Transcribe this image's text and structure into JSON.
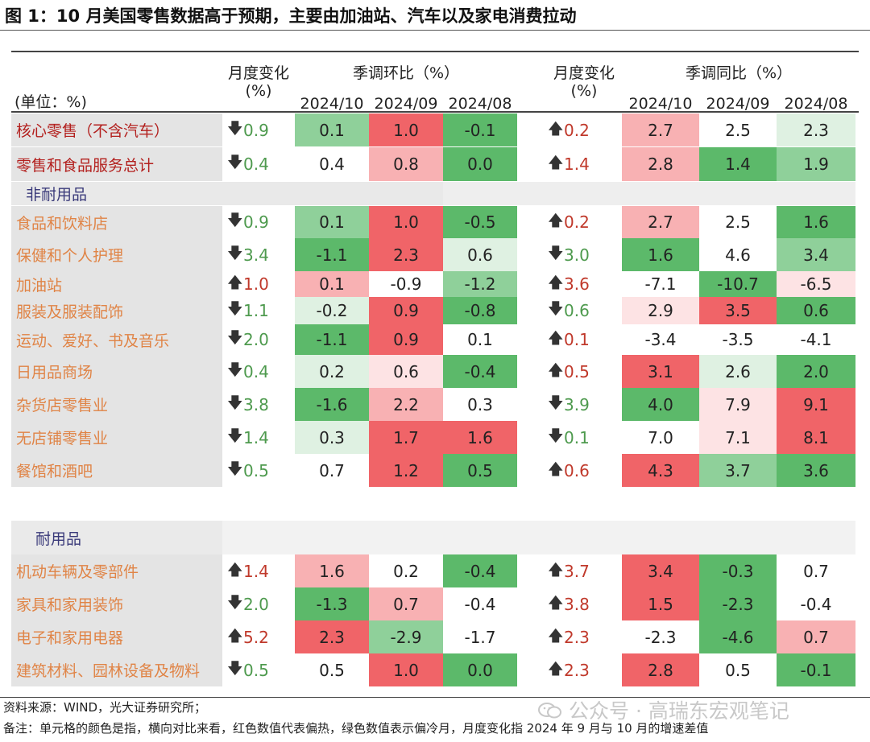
{
  "title": "图 1：10 月美国零售数据高于预期，主要由加油站、汽车以及家电消费拉动",
  "header": {
    "unit": "(单位：%)",
    "mom_change_line1": "月度变化",
    "mom_change_line2": "(%)",
    "mom_group": "季调环比（%）",
    "yoy_change_line1": "月度变化",
    "yoy_change_line2": "(%)",
    "yoy_group": "季调同比（%）",
    "months": [
      "2024/10",
      "2024/09",
      "2024/08"
    ]
  },
  "colors": {
    "red_strong": "#f06468",
    "red_medium": "#f8b1b3",
    "red_light": "#fde3e4",
    "green_strong": "#5cb96a",
    "green_medium": "#8fd09a",
    "green_light": "#dff1e2",
    "white": "#ffffff"
  },
  "rows": [
    {
      "name": "核心零售（不含汽车）",
      "type": "top",
      "mom_dir": "down",
      "mom_chg": "0.9",
      "mom": [
        "0.1",
        "1.0",
        "-0.1"
      ],
      "mom_c": [
        "gm",
        "rs",
        "gs"
      ],
      "yoy_dir": "up",
      "yoy_chg": "0.2",
      "yoy": [
        "2.7",
        "2.5",
        "2.3"
      ],
      "yoy_c": [
        "rm",
        "w",
        "gl"
      ]
    },
    {
      "name": "零售和食品服务总计",
      "type": "top",
      "mom_dir": "down",
      "mom_chg": "0.4",
      "mom": [
        "0.4",
        "0.8",
        "0.0"
      ],
      "mom_c": [
        "w",
        "rm",
        "gs"
      ],
      "yoy_dir": "up",
      "yoy_chg": "1.4",
      "yoy": [
        "2.8",
        "1.4",
        "1.9"
      ],
      "yoy_c": [
        "rm",
        "gs",
        "gm"
      ]
    },
    {
      "name": "食品和饮料店",
      "type": "sub",
      "mom_dir": "down",
      "mom_chg": "0.9",
      "mom": [
        "0.1",
        "1.0",
        "-0.5"
      ],
      "mom_c": [
        "gm",
        "rs",
        "gs"
      ],
      "yoy_dir": "up",
      "yoy_chg": "0.2",
      "yoy": [
        "2.7",
        "2.5",
        "1.6"
      ],
      "yoy_c": [
        "rm",
        "w",
        "gs"
      ]
    },
    {
      "name": "保健和个人护理",
      "type": "sub",
      "mom_dir": "down",
      "mom_chg": "3.4",
      "mom": [
        "-1.1",
        "2.3",
        "0.6"
      ],
      "mom_c": [
        "gs",
        "rs",
        "gl"
      ],
      "yoy_dir": "down",
      "yoy_chg": "3.0",
      "yoy": [
        "1.6",
        "4.6",
        "3.4"
      ],
      "yoy_c": [
        "gs",
        "w",
        "gm"
      ]
    },
    {
      "name": "加油站",
      "type": "sub",
      "mom_dir": "up",
      "mom_chg": "1.0",
      "mom": [
        "0.1",
        "-0.9",
        "-1.2"
      ],
      "mom_c": [
        "rm",
        "w",
        "gm"
      ],
      "yoy_dir": "up",
      "yoy_chg": "3.6",
      "yoy": [
        "-7.1",
        "-10.7",
        "-6.5"
      ],
      "yoy_c": [
        "w",
        "gs",
        "rl"
      ]
    },
    {
      "name": "服装及服装配饰",
      "type": "sub",
      "mom_dir": "down",
      "mom_chg": "1.1",
      "mom": [
        "-0.2",
        "0.9",
        "-0.8"
      ],
      "mom_c": [
        "gl",
        "rs",
        "gs"
      ],
      "yoy_dir": "down",
      "yoy_chg": "0.6",
      "yoy": [
        "2.9",
        "3.5",
        "0.6"
      ],
      "yoy_c": [
        "rl",
        "rs",
        "gs"
      ]
    },
    {
      "name": "运动、爱好、书及音乐",
      "type": "sub",
      "mom_dir": "down",
      "mom_chg": "2.0",
      "mom": [
        "-1.1",
        "0.9",
        "0.1"
      ],
      "mom_c": [
        "gs",
        "rs",
        "w"
      ],
      "yoy_dir": "up",
      "yoy_chg": "0.1",
      "yoy": [
        "-3.4",
        "-3.5",
        "-4.1"
      ],
      "yoy_c": [
        "w",
        "w",
        "w"
      ]
    },
    {
      "name": "日用品商场",
      "type": "sub",
      "mom_dir": "down",
      "mom_chg": "0.4",
      "mom": [
        "0.2",
        "0.6",
        "-0.4"
      ],
      "mom_c": [
        "gl",
        "rl",
        "gs"
      ],
      "yoy_dir": "up",
      "yoy_chg": "0.5",
      "yoy": [
        "3.1",
        "2.6",
        "2.0"
      ],
      "yoy_c": [
        "rs",
        "gl",
        "gs"
      ]
    },
    {
      "name": "杂货店零售业",
      "type": "sub",
      "mom_dir": "down",
      "mom_chg": "3.8",
      "mom": [
        "-1.6",
        "2.2",
        "0.3"
      ],
      "mom_c": [
        "gs",
        "rm",
        "w"
      ],
      "yoy_dir": "down",
      "yoy_chg": "3.9",
      "yoy": [
        "4.0",
        "7.9",
        "9.1"
      ],
      "yoy_c": [
        "gs",
        "rl",
        "rs"
      ]
    },
    {
      "name": "无店铺零售业",
      "type": "sub",
      "mom_dir": "down",
      "mom_chg": "1.4",
      "mom": [
        "0.3",
        "1.7",
        "1.6"
      ],
      "mom_c": [
        "gl",
        "rs",
        "rs"
      ],
      "yoy_dir": "down",
      "yoy_chg": "0.1",
      "yoy": [
        "7.0",
        "7.1",
        "8.1"
      ],
      "yoy_c": [
        "w",
        "rl",
        "rs"
      ]
    },
    {
      "name": "餐馆和酒吧",
      "type": "sub",
      "mom_dir": "down",
      "mom_chg": "0.5",
      "mom": [
        "0.7",
        "1.2",
        "0.5"
      ],
      "mom_c": [
        "w",
        "rs",
        "gs"
      ],
      "yoy_dir": "up",
      "yoy_chg": "0.6",
      "yoy": [
        "4.3",
        "3.7",
        "3.6"
      ],
      "yoy_c": [
        "rs",
        "gm",
        "gs"
      ]
    },
    {
      "name": "机动车辆及零部件",
      "type": "sub",
      "mom_dir": "up",
      "mom_chg": "1.4",
      "mom": [
        "1.6",
        "0.2",
        "-0.4"
      ],
      "mom_c": [
        "rm",
        "w",
        "gs"
      ],
      "yoy_dir": "up",
      "yoy_chg": "3.7",
      "yoy": [
        "3.4",
        "-0.3",
        "0.7"
      ],
      "yoy_c": [
        "rs",
        "gs",
        "w"
      ]
    },
    {
      "name": "家具和家用装饰",
      "type": "sub",
      "mom_dir": "down",
      "mom_chg": "2.0",
      "mom": [
        "-1.3",
        "0.7",
        "-0.4"
      ],
      "mom_c": [
        "gs",
        "rm",
        "w"
      ],
      "yoy_dir": "up",
      "yoy_chg": "3.8",
      "yoy": [
        "1.5",
        "-2.3",
        "-0.4"
      ],
      "yoy_c": [
        "rs",
        "gs",
        "w"
      ]
    },
    {
      "name": "电子和家用电器",
      "type": "sub",
      "mom_dir": "up",
      "mom_chg": "5.2",
      "mom": [
        "2.3",
        "-2.9",
        "-1.7"
      ],
      "mom_c": [
        "rs",
        "gm",
        "w"
      ],
      "yoy_dir": "up",
      "yoy_chg": "2.3",
      "yoy": [
        "-2.3",
        "-4.6",
        "0.7"
      ],
      "yoy_c": [
        "w",
        "gs",
        "rm"
      ]
    },
    {
      "name": "建筑材料、园林设备及物料",
      "type": "sub",
      "mom_dir": "down",
      "mom_chg": "0.5",
      "mom": [
        "0.5",
        "1.0",
        "0.0"
      ],
      "mom_c": [
        "w",
        "rs",
        "gs"
      ],
      "yoy_dir": "up",
      "yoy_chg": "2.3",
      "yoy": [
        "2.8",
        "0.5",
        "-0.1"
      ],
      "yoy_c": [
        "rs",
        "w",
        "gs"
      ]
    }
  ],
  "sections": {
    "nondurable": "非耐用品",
    "durable": "耐用品"
  },
  "footer": {
    "source": "资料来源：WIND，光大证券研究所；",
    "note": "备注：单元格的颜色是指，横向对比来看，红色数值代表偏热，绿色数值表示偏冷月，月度变化指 2024 年 9 月与 10 月的增速差值"
  },
  "watermark": "公众号 · 高瑞东宏观笔记",
  "arrows": {
    "up": "🡅",
    "down": "🡇"
  }
}
